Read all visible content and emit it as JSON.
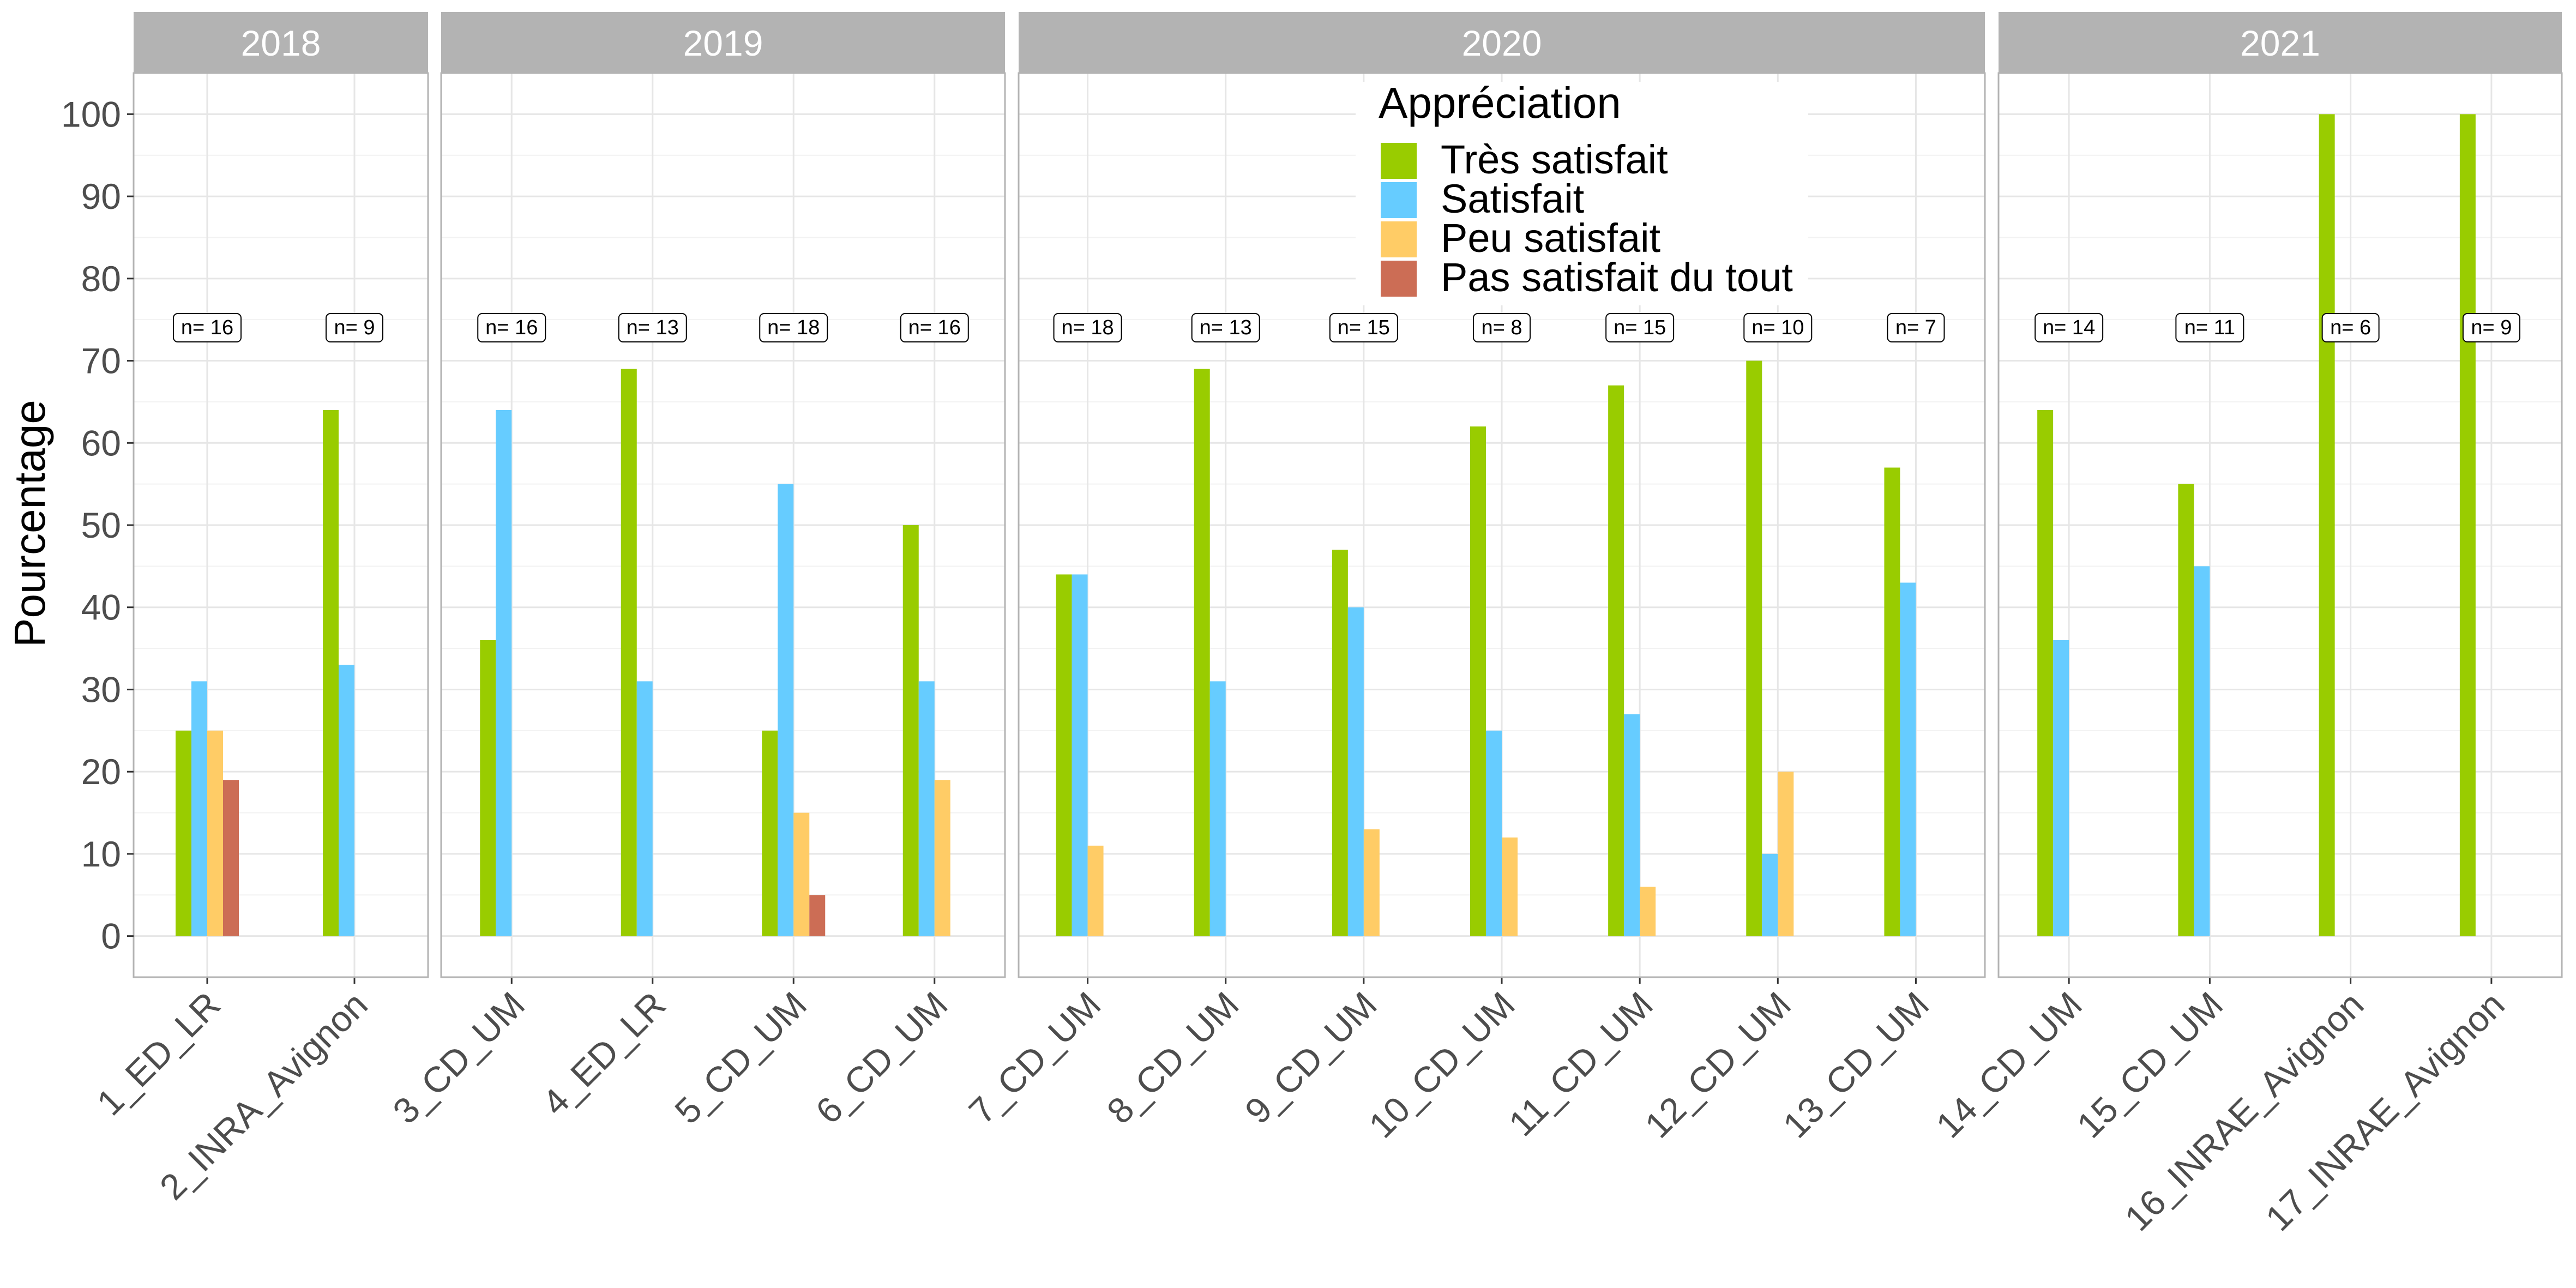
{
  "chart_data": {
    "type": "bar",
    "ylabel": "Pourcentage",
    "xlabel": "",
    "ylim": [
      -5,
      105
    ],
    "yticks": [
      0,
      10,
      20,
      30,
      40,
      50,
      60,
      70,
      80,
      90,
      100
    ],
    "grid": true,
    "legend": {
      "title": "Appréciation",
      "placement": "top-center, inside the 2020 panel",
      "entries": [
        {
          "name": "Très satisfait",
          "color": "#99CC00"
        },
        {
          "name": "Satisfait",
          "color": "#66CCFF"
        },
        {
          "name": "Peu satisfait",
          "color": "#FFCC66"
        },
        {
          "name": "Pas satisfait du tout",
          "color": "#CC6D55"
        }
      ]
    },
    "panels": [
      {
        "title": "2018",
        "groups": [
          {
            "label": "1_ED_LR",
            "n": "n= 16",
            "values": [
              25,
              31,
              25,
              19
            ]
          },
          {
            "label": "2_INRA_Avignon",
            "n": "n= 9",
            "values": [
              64,
              33,
              0,
              0
            ]
          }
        ]
      },
      {
        "title": "2019",
        "groups": [
          {
            "label": "3_CD_UM",
            "n": "n= 16",
            "values": [
              36,
              64,
              0,
              0
            ]
          },
          {
            "label": "4_ED_LR",
            "n": "n= 13",
            "values": [
              69,
              31,
              0,
              0
            ]
          },
          {
            "label": "5_CD_UM",
            "n": "n= 18",
            "values": [
              25,
              55,
              15,
              5
            ]
          },
          {
            "label": "6_CD_UM",
            "n": "n= 16",
            "values": [
              50,
              31,
              19,
              0
            ]
          }
        ]
      },
      {
        "title": "2020",
        "groups": [
          {
            "label": "7_CD_UM",
            "n": "n= 18",
            "values": [
              44,
              44,
              11,
              0
            ]
          },
          {
            "label": "8_CD_UM",
            "n": "n= 13",
            "values": [
              69,
              31,
              0,
              0
            ]
          },
          {
            "label": "9_CD_UM",
            "n": "n= 15",
            "values": [
              47,
              40,
              13,
              0
            ]
          },
          {
            "label": "10_CD_UM",
            "n": "n= 8",
            "values": [
              62,
              25,
              12,
              0
            ]
          },
          {
            "label": "11_CD_UM",
            "n": "n= 15",
            "values": [
              67,
              27,
              6,
              0
            ]
          },
          {
            "label": "12_CD_UM",
            "n": "n= 10",
            "values": [
              70,
              10,
              20,
              0
            ]
          },
          {
            "label": "13_CD_UM",
            "n": "n= 7",
            "values": [
              57,
              43,
              0,
              0
            ]
          }
        ]
      },
      {
        "title": "2021",
        "groups": [
          {
            "label": "14_CD_UM",
            "n": "n= 14",
            "values": [
              64,
              36,
              0,
              0
            ]
          },
          {
            "label": "15_CD_UM",
            "n": "n= 11",
            "values": [
              55,
              45,
              0,
              0
            ]
          },
          {
            "label": "16_INRAE_Avignon",
            "n": "n= 6",
            "values": [
              100,
              0,
              0,
              0
            ]
          },
          {
            "label": "17_INRAE_Avignon",
            "n": "n= 9",
            "values": [
              100,
              0,
              0,
              0
            ]
          }
        ]
      }
    ]
  },
  "colors": {
    "strip_background": "#B3B3B3",
    "panel_border": "#B3B3B3",
    "grid_major": "#E6E6E6",
    "grid_minor": "#F2F2F2"
  }
}
